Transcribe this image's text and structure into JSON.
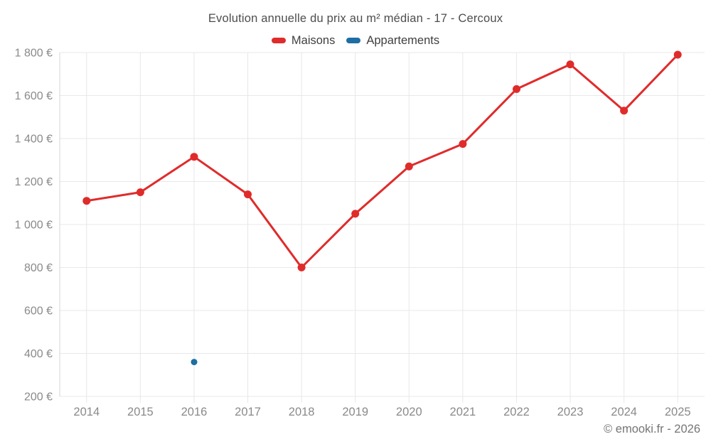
{
  "title": "Evolution annuelle du prix au m² médian - 17 - Cercoux",
  "legend": {
    "items": [
      {
        "label": "Maisons",
        "color": "#e02b2b"
      },
      {
        "label": "Appartements",
        "color": "#1c6ea4"
      }
    ]
  },
  "footer": {
    "credit": "© emooki.fr - 2026"
  },
  "colors": {
    "grid": "#e8e8e8",
    "axis": "#d4d4d4",
    "tick_text": "#8a8a8a",
    "maisons": "#e02b2b",
    "appartements": "#1c6ea4"
  },
  "chart_data": {
    "type": "line",
    "title": "Evolution annuelle du prix au m² médian - 17 - Cercoux",
    "categories": [
      "2014",
      "2015",
      "2016",
      "2017",
      "2018",
      "2019",
      "2020",
      "2021",
      "2022",
      "2023",
      "2024",
      "2025"
    ],
    "series": [
      {
        "name": "Maisons",
        "color": "#e02b2b",
        "values": [
          1110,
          1150,
          1315,
          1140,
          800,
          1050,
          1270,
          1375,
          1630,
          1745,
          1530,
          1790
        ]
      },
      {
        "name": "Appartements",
        "color": "#1c6ea4",
        "values": [
          null,
          null,
          360,
          null,
          null,
          null,
          null,
          null,
          null,
          null,
          null,
          null
        ]
      }
    ],
    "xlabel": "",
    "ylabel": "",
    "ylim": [
      200,
      1800
    ],
    "yticks": [
      200,
      400,
      600,
      800,
      1000,
      1200,
      1400,
      1600,
      1800
    ],
    "ytick_labels": [
      "200 €",
      "400 €",
      "600 €",
      "800 €",
      "1 000 €",
      "1 200 €",
      "1 400 €",
      "1 600 €",
      "1 800 €"
    ],
    "grid": true,
    "legend_position": "top"
  }
}
